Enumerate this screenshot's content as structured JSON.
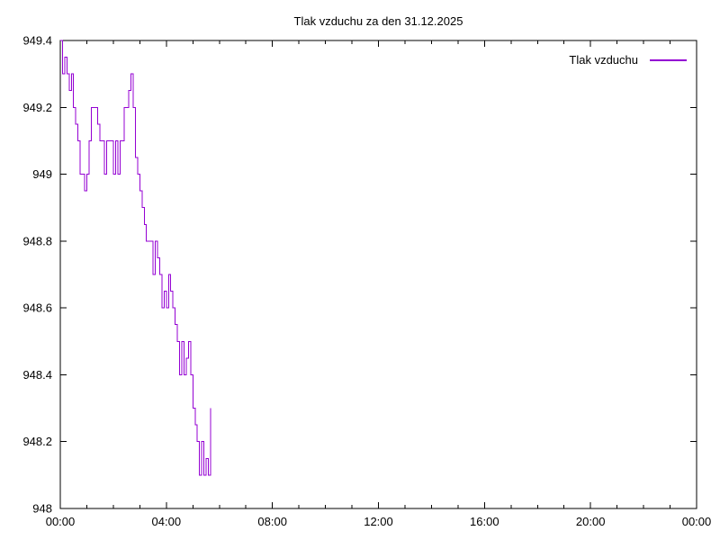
{
  "chart_data": {
    "type": "line",
    "title": "Tlak vzduchu za den 31.12.2025",
    "grid": false,
    "background": "#ffffff",
    "axis_color": "#000000",
    "legend_position": "top-right-inside",
    "x_axis": {
      "unit": "time-of-day",
      "range_minutes": [
        0,
        1440
      ],
      "major_tick_interval_minutes": 240,
      "minor_tick_interval_minutes": 60,
      "tick_labels": [
        "00:00",
        "04:00",
        "08:00",
        "12:00",
        "16:00",
        "20:00",
        "00:00"
      ]
    },
    "y_axis": {
      "range": [
        948,
        949.4
      ],
      "ticks": [
        948,
        948.2,
        948.4,
        948.6,
        948.8,
        949,
        949.2,
        949.4
      ],
      "tick_labels": [
        "948",
        "948.2",
        "948.4",
        "948.6",
        "948.8",
        "949",
        "949.2",
        "949.4"
      ]
    },
    "series": [
      {
        "name": "Tlak vzduchu",
        "color": "#9400d3",
        "style": "steps",
        "x_minutes": [
          0,
          5,
          10,
          15,
          20,
          25,
          30,
          35,
          40,
          45,
          50,
          55,
          60,
          65,
          70,
          75,
          80,
          85,
          90,
          95,
          100,
          105,
          110,
          115,
          120,
          125,
          130,
          135,
          140,
          145,
          150,
          155,
          160,
          165,
          170,
          175,
          180,
          185,
          190,
          195,
          200,
          205,
          210,
          215,
          220,
          225,
          230,
          235,
          240,
          245,
          250,
          255,
          260,
          265,
          270,
          275,
          280,
          285,
          290,
          295,
          300,
          305,
          310,
          315,
          320,
          325,
          330,
          335,
          340
        ],
        "values": [
          949.4,
          949.3,
          949.35,
          949.3,
          949.25,
          949.3,
          949.2,
          949.15,
          949.1,
          949.0,
          949.0,
          948.95,
          949.0,
          949.1,
          949.2,
          949.2,
          949.2,
          949.15,
          949.1,
          949.1,
          949.0,
          949.1,
          949.1,
          949.1,
          949.0,
          949.1,
          949.0,
          949.1,
          949.1,
          949.2,
          949.2,
          949.25,
          949.3,
          949.2,
          949.05,
          949.0,
          948.95,
          948.9,
          948.85,
          948.8,
          948.8,
          948.8,
          948.7,
          948.8,
          948.75,
          948.7,
          948.6,
          948.65,
          948.6,
          948.7,
          948.65,
          948.6,
          948.55,
          948.5,
          948.4,
          948.5,
          948.4,
          948.45,
          948.5,
          948.4,
          948.3,
          948.25,
          948.2,
          948.1,
          948.2,
          948.1,
          948.15,
          948.1,
          948.3
        ]
      }
    ]
  }
}
